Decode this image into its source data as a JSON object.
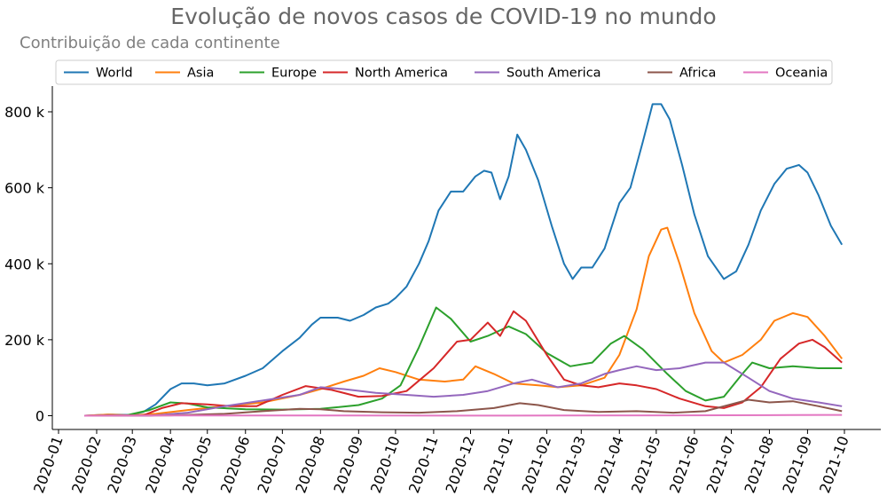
{
  "chart_data": {
    "type": "line",
    "title": "Evolução de novos casos de COVID-19 no mundo",
    "subtitle": "Contribuição de cada continente",
    "xlabel": "",
    "ylabel": "",
    "x_ticks": [
      "2020-01",
      "2020-02",
      "2020-03",
      "2020-04",
      "2020-05",
      "2020-06",
      "2020-07",
      "2020-08",
      "2020-09",
      "2020-10",
      "2020-11",
      "2020-12",
      "2021-01",
      "2021-02",
      "2021-03",
      "2021-04",
      "2021-05",
      "2021-06",
      "2021-07",
      "2021-08",
      "2021-09",
      "2021-10"
    ],
    "y_ticks": [
      0,
      200000,
      400000,
      600000,
      800000
    ],
    "y_tick_labels": [
      "0",
      "200 k",
      "400 k",
      "600 k",
      "800 k"
    ],
    "ylim": [
      -40000,
      860000
    ],
    "xlim": [
      "2020-01-01",
      "2021-10-01"
    ],
    "grid": false,
    "legend_position": "top",
    "series": [
      {
        "name": "World",
        "color": "#1f77b4",
        "points": [
          [
            "2020-01-22",
            0
          ],
          [
            "2020-02-10",
            3000
          ],
          [
            "2020-02-28",
            2000
          ],
          [
            "2020-03-10",
            10000
          ],
          [
            "2020-03-20",
            30000
          ],
          [
            "2020-04-01",
            70000
          ],
          [
            "2020-04-10",
            85000
          ],
          [
            "2020-04-20",
            85000
          ],
          [
            "2020-05-01",
            80000
          ],
          [
            "2020-05-15",
            85000
          ],
          [
            "2020-06-01",
            105000
          ],
          [
            "2020-06-15",
            125000
          ],
          [
            "2020-07-01",
            170000
          ],
          [
            "2020-07-15",
            205000
          ],
          [
            "2020-07-25",
            240000
          ],
          [
            "2020-08-01",
            258000
          ],
          [
            "2020-08-15",
            258000
          ],
          [
            "2020-08-25",
            250000
          ],
          [
            "2020-09-05",
            265000
          ],
          [
            "2020-09-15",
            285000
          ],
          [
            "2020-09-25",
            295000
          ],
          [
            "2020-10-01",
            310000
          ],
          [
            "2020-10-10",
            340000
          ],
          [
            "2020-10-20",
            400000
          ],
          [
            "2020-10-28",
            460000
          ],
          [
            "2020-11-05",
            540000
          ],
          [
            "2020-11-15",
            590000
          ],
          [
            "2020-11-25",
            590000
          ],
          [
            "2020-12-05",
            630000
          ],
          [
            "2020-12-12",
            645000
          ],
          [
            "2020-12-18",
            640000
          ],
          [
            "2020-12-25",
            570000
          ],
          [
            "2021-01-01",
            630000
          ],
          [
            "2021-01-08",
            740000
          ],
          [
            "2021-01-15",
            700000
          ],
          [
            "2021-01-25",
            620000
          ],
          [
            "2021-02-05",
            500000
          ],
          [
            "2021-02-15",
            400000
          ],
          [
            "2021-02-22",
            360000
          ],
          [
            "2021-03-01",
            390000
          ],
          [
            "2021-03-10",
            390000
          ],
          [
            "2021-03-20",
            440000
          ],
          [
            "2021-04-01",
            560000
          ],
          [
            "2021-04-10",
            600000
          ],
          [
            "2021-04-20",
            720000
          ],
          [
            "2021-04-28",
            820000
          ],
          [
            "2021-05-05",
            820000
          ],
          [
            "2021-05-12",
            780000
          ],
          [
            "2021-05-22",
            660000
          ],
          [
            "2021-06-01",
            530000
          ],
          [
            "2021-06-12",
            420000
          ],
          [
            "2021-06-25",
            360000
          ],
          [
            "2021-07-05",
            380000
          ],
          [
            "2021-07-15",
            450000
          ],
          [
            "2021-07-25",
            540000
          ],
          [
            "2021-08-05",
            610000
          ],
          [
            "2021-08-15",
            650000
          ],
          [
            "2021-08-25",
            660000
          ],
          [
            "2021-09-01",
            640000
          ],
          [
            "2021-09-10",
            580000
          ],
          [
            "2021-09-20",
            500000
          ],
          [
            "2021-09-29",
            450000
          ]
        ]
      },
      {
        "name": "Asia",
        "color": "#ff7f0e",
        "points": [
          [
            "2020-01-22",
            0
          ],
          [
            "2020-02-10",
            3000
          ],
          [
            "2020-02-28",
            1000
          ],
          [
            "2020-03-20",
            5000
          ],
          [
            "2020-04-15",
            15000
          ],
          [
            "2020-05-15",
            25000
          ],
          [
            "2020-06-15",
            35000
          ],
          [
            "2020-07-15",
            55000
          ],
          [
            "2020-08-01",
            70000
          ],
          [
            "2020-08-20",
            90000
          ],
          [
            "2020-09-05",
            105000
          ],
          [
            "2020-09-18",
            125000
          ],
          [
            "2020-10-01",
            115000
          ],
          [
            "2020-10-20",
            95000
          ],
          [
            "2020-11-10",
            90000
          ],
          [
            "2020-11-25",
            95000
          ],
          [
            "2020-12-05",
            130000
          ],
          [
            "2020-12-20",
            110000
          ],
          [
            "2021-01-05",
            85000
          ],
          [
            "2021-01-25",
            80000
          ],
          [
            "2021-02-10",
            75000
          ],
          [
            "2021-03-01",
            80000
          ],
          [
            "2021-03-20",
            100000
          ],
          [
            "2021-04-01",
            160000
          ],
          [
            "2021-04-15",
            280000
          ],
          [
            "2021-04-25",
            420000
          ],
          [
            "2021-05-05",
            490000
          ],
          [
            "2021-05-10",
            495000
          ],
          [
            "2021-05-20",
            400000
          ],
          [
            "2021-06-01",
            270000
          ],
          [
            "2021-06-15",
            170000
          ],
          [
            "2021-06-25",
            140000
          ],
          [
            "2021-07-10",
            160000
          ],
          [
            "2021-07-25",
            200000
          ],
          [
            "2021-08-05",
            250000
          ],
          [
            "2021-08-20",
            270000
          ],
          [
            "2021-09-01",
            260000
          ],
          [
            "2021-09-15",
            210000
          ],
          [
            "2021-09-29",
            150000
          ]
        ]
      },
      {
        "name": "Europe",
        "color": "#2ca02c",
        "points": [
          [
            "2020-01-22",
            0
          ],
          [
            "2020-02-25",
            1000
          ],
          [
            "2020-03-15",
            15000
          ],
          [
            "2020-04-01",
            35000
          ],
          [
            "2020-04-15",
            32000
          ],
          [
            "2020-05-01",
            22000
          ],
          [
            "2020-06-01",
            17000
          ],
          [
            "2020-07-01",
            16000
          ],
          [
            "2020-08-01",
            18000
          ],
          [
            "2020-09-01",
            28000
          ],
          [
            "2020-09-20",
            45000
          ],
          [
            "2020-10-05",
            80000
          ],
          [
            "2020-10-20",
            180000
          ],
          [
            "2020-11-03",
            285000
          ],
          [
            "2020-11-15",
            255000
          ],
          [
            "2020-12-01",
            195000
          ],
          [
            "2020-12-15",
            210000
          ],
          [
            "2021-01-01",
            235000
          ],
          [
            "2021-01-15",
            215000
          ],
          [
            "2021-02-01",
            165000
          ],
          [
            "2021-02-20",
            130000
          ],
          [
            "2021-03-10",
            140000
          ],
          [
            "2021-03-25",
            190000
          ],
          [
            "2021-04-05",
            210000
          ],
          [
            "2021-04-20",
            175000
          ],
          [
            "2021-05-10",
            110000
          ],
          [
            "2021-05-25",
            65000
          ],
          [
            "2021-06-10",
            40000
          ],
          [
            "2021-06-25",
            50000
          ],
          [
            "2021-07-10",
            110000
          ],
          [
            "2021-07-18",
            140000
          ],
          [
            "2021-08-01",
            125000
          ],
          [
            "2021-08-20",
            130000
          ],
          [
            "2021-09-10",
            125000
          ],
          [
            "2021-09-29",
            125000
          ]
        ]
      },
      {
        "name": "North America",
        "color": "#d62728",
        "points": [
          [
            "2020-01-22",
            0
          ],
          [
            "2020-03-10",
            1000
          ],
          [
            "2020-03-25",
            20000
          ],
          [
            "2020-04-10",
            33000
          ],
          [
            "2020-05-01",
            30000
          ],
          [
            "2020-05-20",
            25000
          ],
          [
            "2020-06-10",
            25000
          ],
          [
            "2020-07-01",
            55000
          ],
          [
            "2020-07-20",
            78000
          ],
          [
            "2020-08-10",
            68000
          ],
          [
            "2020-09-01",
            50000
          ],
          [
            "2020-09-20",
            52000
          ],
          [
            "2020-10-10",
            65000
          ],
          [
            "2020-11-01",
            125000
          ],
          [
            "2020-11-20",
            195000
          ],
          [
            "2020-12-01",
            200000
          ],
          [
            "2020-12-15",
            245000
          ],
          [
            "2020-12-25",
            210000
          ],
          [
            "2021-01-05",
            275000
          ],
          [
            "2021-01-15",
            250000
          ],
          [
            "2021-02-01",
            160000
          ],
          [
            "2021-02-15",
            95000
          ],
          [
            "2021-03-01",
            80000
          ],
          [
            "2021-03-15",
            75000
          ],
          [
            "2021-04-01",
            85000
          ],
          [
            "2021-04-15",
            80000
          ],
          [
            "2021-05-01",
            70000
          ],
          [
            "2021-05-20",
            45000
          ],
          [
            "2021-06-10",
            25000
          ],
          [
            "2021-06-25",
            20000
          ],
          [
            "2021-07-10",
            35000
          ],
          [
            "2021-07-25",
            75000
          ],
          [
            "2021-08-10",
            150000
          ],
          [
            "2021-08-25",
            190000
          ],
          [
            "2021-09-05",
            200000
          ],
          [
            "2021-09-15",
            180000
          ],
          [
            "2021-09-29",
            140000
          ]
        ]
      },
      {
        "name": "South America",
        "color": "#9467bd",
        "points": [
          [
            "2020-01-22",
            0
          ],
          [
            "2020-03-15",
            0
          ],
          [
            "2020-04-15",
            8000
          ],
          [
            "2020-05-15",
            25000
          ],
          [
            "2020-06-15",
            40000
          ],
          [
            "2020-07-15",
            55000
          ],
          [
            "2020-08-01",
            75000
          ],
          [
            "2020-08-20",
            70000
          ],
          [
            "2020-09-15",
            60000
          ],
          [
            "2020-10-10",
            55000
          ],
          [
            "2020-11-01",
            50000
          ],
          [
            "2020-11-25",
            55000
          ],
          [
            "2020-12-15",
            65000
          ],
          [
            "2021-01-05",
            85000
          ],
          [
            "2021-01-20",
            95000
          ],
          [
            "2021-02-10",
            75000
          ],
          [
            "2021-03-01",
            85000
          ],
          [
            "2021-03-20",
            110000
          ],
          [
            "2021-04-01",
            120000
          ],
          [
            "2021-04-15",
            130000
          ],
          [
            "2021-05-01",
            120000
          ],
          [
            "2021-05-20",
            125000
          ],
          [
            "2021-06-10",
            140000
          ],
          [
            "2021-06-25",
            140000
          ],
          [
            "2021-07-15",
            100000
          ],
          [
            "2021-08-01",
            65000
          ],
          [
            "2021-08-20",
            45000
          ],
          [
            "2021-09-10",
            35000
          ],
          [
            "2021-09-29",
            25000
          ]
        ]
      },
      {
        "name": "Africa",
        "color": "#8c564b",
        "points": [
          [
            "2020-01-22",
            0
          ],
          [
            "2020-04-01",
            1000
          ],
          [
            "2020-05-15",
            5000
          ],
          [
            "2020-06-15",
            12000
          ],
          [
            "2020-07-15",
            18000
          ],
          [
            "2020-08-01",
            17000
          ],
          [
            "2020-08-20",
            12000
          ],
          [
            "2020-09-20",
            9000
          ],
          [
            "2020-10-20",
            8000
          ],
          [
            "2020-11-20",
            12000
          ],
          [
            "2020-12-20",
            20000
          ],
          [
            "2021-01-10",
            33000
          ],
          [
            "2021-01-25",
            28000
          ],
          [
            "2021-02-15",
            15000
          ],
          [
            "2021-03-15",
            10000
          ],
          [
            "2021-04-15",
            12000
          ],
          [
            "2021-05-15",
            8000
          ],
          [
            "2021-06-10",
            12000
          ],
          [
            "2021-06-25",
            25000
          ],
          [
            "2021-07-15",
            42000
          ],
          [
            "2021-08-01",
            35000
          ],
          [
            "2021-08-20",
            38000
          ],
          [
            "2021-09-10",
            25000
          ],
          [
            "2021-09-29",
            12000
          ]
        ]
      },
      {
        "name": "Oceania",
        "color": "#e377c2",
        "points": [
          [
            "2020-01-22",
            0
          ],
          [
            "2020-04-01",
            500
          ],
          [
            "2020-08-01",
            500
          ],
          [
            "2021-01-01",
            200
          ],
          [
            "2021-08-01",
            1500
          ],
          [
            "2021-09-15",
            2000
          ],
          [
            "2021-09-29",
            2000
          ]
        ]
      }
    ]
  }
}
